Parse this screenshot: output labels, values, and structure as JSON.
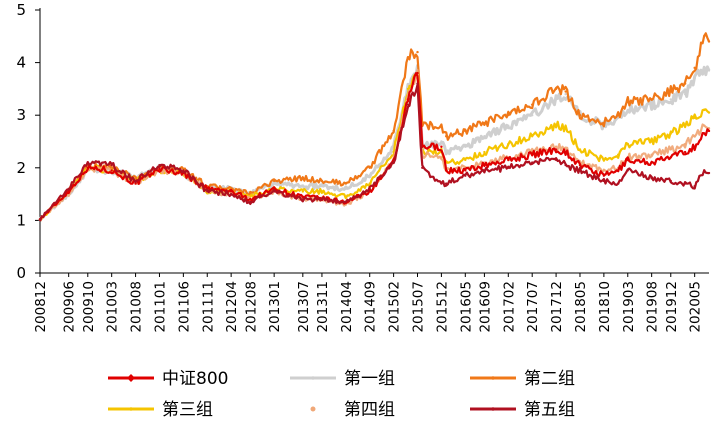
{
  "chart_data": {
    "type": "line",
    "title": "",
    "xlabel": "",
    "ylabel": "",
    "ylim": [
      0,
      5
    ],
    "yticks": [
      0,
      1,
      2,
      3,
      4,
      5
    ],
    "xticks": [
      "200812",
      "200906",
      "200910",
      "201003",
      "201008",
      "201101",
      "201106",
      "201111",
      "201204",
      "201208",
      "201301",
      "201307",
      "201311",
      "201404",
      "201409",
      "201502",
      "201507",
      "201512",
      "201605",
      "201609",
      "201702",
      "201707",
      "201712",
      "201805",
      "201810",
      "201903",
      "201908",
      "201912",
      "202005"
    ],
    "legend_position": "bottom",
    "grid": false,
    "anchors": [
      "200812",
      "200906",
      "200910",
      "201003",
      "201008",
      "201101",
      "201106",
      "201111",
      "201204",
      "201208",
      "201301",
      "201307",
      "201311",
      "201404",
      "201409",
      "201502",
      "201505",
      "201507",
      "201508",
      "201512",
      "201601",
      "201605",
      "201609",
      "201702",
      "201707",
      "201712",
      "201802",
      "201805",
      "201810",
      "201901",
      "201903",
      "201908",
      "201912",
      "202003",
      "202005",
      "202007",
      "202008"
    ],
    "series": [
      {
        "name": "中证800",
        "color": "#e00000",
        "marker": "diamond",
        "values": [
          1.02,
          1.55,
          2.0,
          1.95,
          1.7,
          1.98,
          1.9,
          1.6,
          1.55,
          1.4,
          1.6,
          1.45,
          1.42,
          1.35,
          1.55,
          2.1,
          3.3,
          3.8,
          2.4,
          2.4,
          1.95,
          1.95,
          2.05,
          2.15,
          2.25,
          2.35,
          2.3,
          2.05,
          1.85,
          1.95,
          2.15,
          2.1,
          2.2,
          2.3,
          2.4,
          2.65,
          2.7
        ]
      },
      {
        "name": "第一组",
        "color": "#cfcfcf",
        "marker": "none",
        "values": [
          1.02,
          1.5,
          1.95,
          1.95,
          1.8,
          2.0,
          1.9,
          1.6,
          1.6,
          1.5,
          1.7,
          1.65,
          1.65,
          1.6,
          1.85,
          2.4,
          3.5,
          3.9,
          2.4,
          2.5,
          2.3,
          2.4,
          2.6,
          2.8,
          3.0,
          3.3,
          3.4,
          3.0,
          2.8,
          2.95,
          3.1,
          3.2,
          3.3,
          3.4,
          3.7,
          3.9,
          3.85
        ]
      },
      {
        "name": "第二组",
        "color": "#f07818",
        "marker": "none",
        "values": [
          1.02,
          1.55,
          2.05,
          2.0,
          1.8,
          2.0,
          1.95,
          1.65,
          1.6,
          1.5,
          1.75,
          1.8,
          1.75,
          1.7,
          2.0,
          2.7,
          4.1,
          4.2,
          2.8,
          2.8,
          2.6,
          2.7,
          2.85,
          3.0,
          3.2,
          3.5,
          3.45,
          3.0,
          2.85,
          3.0,
          3.25,
          3.3,
          3.45,
          3.6,
          3.9,
          4.5,
          4.4
        ]
      },
      {
        "name": "第三组",
        "color": "#f5c400",
        "marker": "none",
        "values": [
          1.02,
          1.52,
          2.0,
          1.95,
          1.75,
          1.95,
          1.9,
          1.55,
          1.55,
          1.45,
          1.6,
          1.55,
          1.55,
          1.45,
          1.7,
          2.3,
          3.5,
          3.8,
          2.3,
          2.3,
          2.1,
          2.15,
          2.3,
          2.45,
          2.6,
          2.8,
          2.75,
          2.35,
          2.15,
          2.25,
          2.45,
          2.5,
          2.65,
          2.8,
          2.95,
          3.1,
          3.05
        ]
      },
      {
        "name": "第四组",
        "color": "#f0a878",
        "marker": "dot",
        "values": [
          1.02,
          1.5,
          1.98,
          1.95,
          1.7,
          1.95,
          1.9,
          1.55,
          1.5,
          1.4,
          1.55,
          1.4,
          1.4,
          1.3,
          1.55,
          2.15,
          3.35,
          3.75,
          2.25,
          2.2,
          1.95,
          2.0,
          2.1,
          2.2,
          2.3,
          2.4,
          2.35,
          2.1,
          1.95,
          2.0,
          2.2,
          2.25,
          2.35,
          2.45,
          2.6,
          2.8,
          2.75
        ]
      },
      {
        "name": "第五组",
        "color": "#b01020",
        "marker": "none",
        "values": [
          1.02,
          1.6,
          2.1,
          2.05,
          1.75,
          2.05,
          1.95,
          1.55,
          1.5,
          1.35,
          1.55,
          1.4,
          1.4,
          1.35,
          1.6,
          2.1,
          3.2,
          3.6,
          2.0,
          1.7,
          1.7,
          1.85,
          1.95,
          2.0,
          2.1,
          2.15,
          2.05,
          1.95,
          1.75,
          1.7,
          1.95,
          1.8,
          1.75,
          1.7,
          1.65,
          1.95,
          1.9
        ]
      }
    ]
  }
}
